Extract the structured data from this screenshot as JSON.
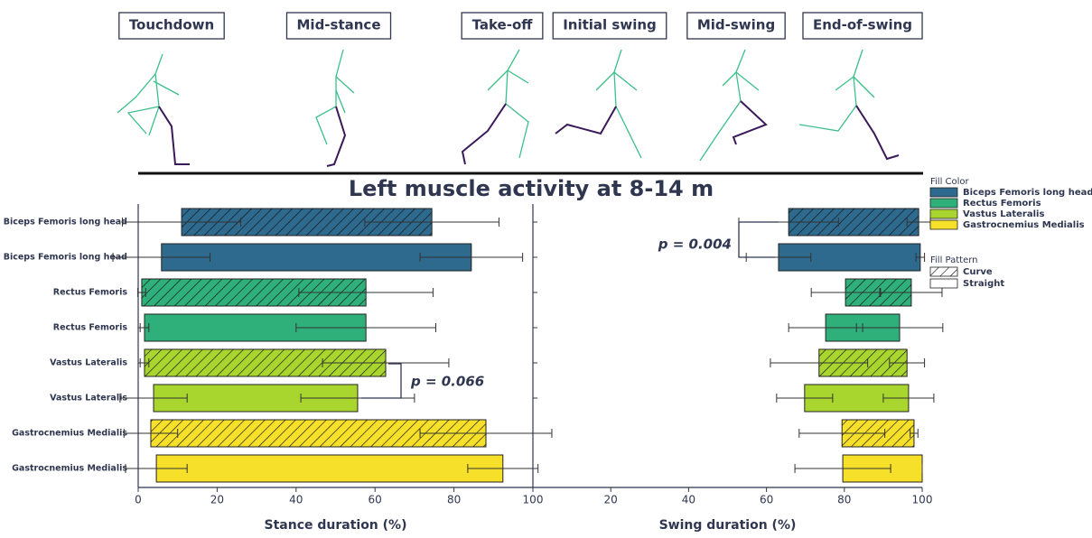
{
  "phases": [
    "Touchdown",
    "Mid-stance",
    "Take-off",
    "Initial swing",
    "Mid-swing",
    "End-of-swing"
  ],
  "title": "Left muscle activity at 8-14 m",
  "legend": {
    "color_title": "Fill Color",
    "colors": [
      {
        "name": "Biceps Femoris long head",
        "color": "#2d6a8e"
      },
      {
        "name": "Rectus Femoris",
        "color": "#2fb07a"
      },
      {
        "name": "Vastus Lateralis",
        "color": "#a9d62e"
      },
      {
        "name": "Gastrocnemius Medialis",
        "color": "#f6e02a"
      }
    ],
    "pattern_title": "Fill Pattern",
    "patterns": [
      "Curve",
      "Straight"
    ]
  },
  "chart_data": [
    {
      "type": "bar",
      "xlabel": "Stance duration (%)",
      "categories": [
        "Biceps Femoris long head",
        "Biceps Femoris long head",
        "Rectus Femoris",
        "Rectus Femoris",
        "Vastus Lateralis",
        "Vastus Lateralis",
        "Gastrocnemius Medialis",
        "Gastrocnemius Medialis"
      ],
      "colors": [
        "#2d6a8e",
        "#2d6a8e",
        "#2fb07a",
        "#2fb07a",
        "#a9d62e",
        "#a9d62e",
        "#f6e02a",
        "#f6e02a"
      ],
      "hatched": [
        true,
        false,
        true,
        false,
        true,
        false,
        true,
        false
      ],
      "starts": [
        11,
        5.9,
        0.9,
        1.6,
        1.6,
        3.9,
        3.2,
        4.6
      ],
      "ends": [
        74.4,
        84.4,
        57.7,
        57.7,
        62.7,
        55.6,
        88.1,
        92.4
      ],
      "start_errors": [
        15,
        12.3,
        1,
        1.1,
        1.1,
        8.5,
        6.8,
        7.8
      ],
      "end_errors": [
        17,
        13,
        17,
        17.7,
        16,
        14.4,
        16.7,
        8.9
      ],
      "xlim": [
        0,
        100
      ],
      "xticks": [
        0,
        20,
        40,
        60,
        80,
        100
      ],
      "annotation": "p = 0.066"
    },
    {
      "type": "bar",
      "xlabel": "Swing duration (%)",
      "starts": [
        65.7,
        63.1,
        80.3,
        75.2,
        73.5,
        69.8,
        79.4,
        79.6
      ],
      "ends": [
        99.1,
        99.5,
        97.2,
        94.2,
        96.1,
        96.5,
        97.9,
        100
      ],
      "start_errors": [
        12.8,
        8.3,
        8.8,
        9.5,
        12.5,
        7.2,
        11,
        12.3
      ],
      "end_errors": [
        3,
        1.1,
        7.9,
        11.1,
        4.5,
        6.5,
        1,
        0
      ],
      "xlim": [
        0,
        100
      ],
      "xticks": [
        20,
        40,
        60,
        80,
        100
      ],
      "annotation": "p = 0.004"
    }
  ]
}
